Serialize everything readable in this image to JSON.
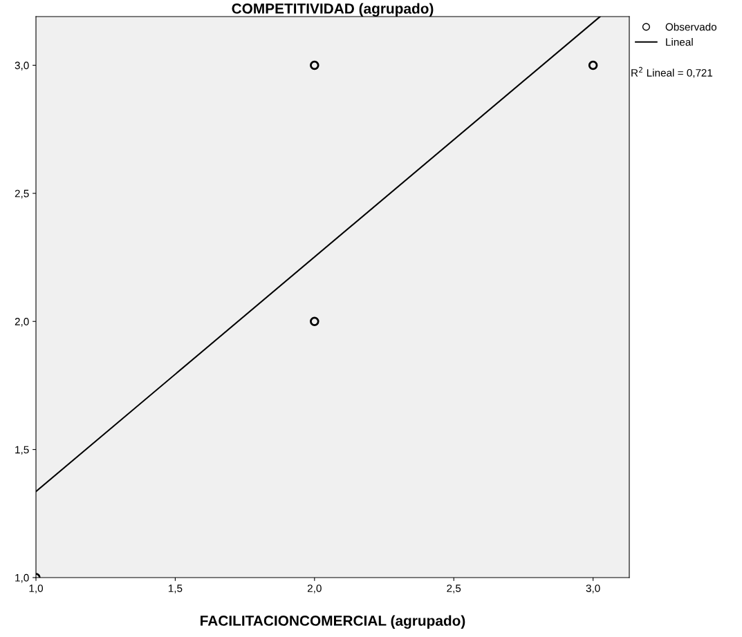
{
  "chart_data": {
    "type": "scatter",
    "title": "COMPETITIVIDAD (agrupado)",
    "xlabel": "FACILITACIONCOMERCIAL (agrupado)",
    "xlim": [
      1.0,
      3.13
    ],
    "ylim": [
      1.0,
      3.19
    ],
    "xticks": [
      {
        "value": 1.0,
        "label": "1,0"
      },
      {
        "value": 1.5,
        "label": "1,5"
      },
      {
        "value": 2.0,
        "label": "2,0"
      },
      {
        "value": 2.5,
        "label": "2,5"
      },
      {
        "value": 3.0,
        "label": "3,0"
      }
    ],
    "yticks": [
      {
        "value": 1.0,
        "label": "1,0"
      },
      {
        "value": 1.5,
        "label": "1,5"
      },
      {
        "value": 2.0,
        "label": "2,0"
      },
      {
        "value": 2.5,
        "label": "2,5"
      },
      {
        "value": 3.0,
        "label": "3,0"
      }
    ],
    "series": [
      {
        "name": "Observado",
        "marker": "circle",
        "color": "#000000",
        "x": [
          1.0,
          2.0,
          2.0,
          3.0
        ],
        "values": [
          1.0,
          3.0,
          2.0,
          3.0
        ]
      },
      {
        "name": "Lineal",
        "type": "line",
        "marker": "none",
        "line_style": "solid",
        "color": "#000000",
        "x": [
          1.0,
          3.025
        ],
        "values": [
          1.336,
          3.19
        ]
      }
    ],
    "annotations": [
      "R$^{2}$ Lineal = 0,721"
    ],
    "legend": "top right",
    "grid": false
  }
}
